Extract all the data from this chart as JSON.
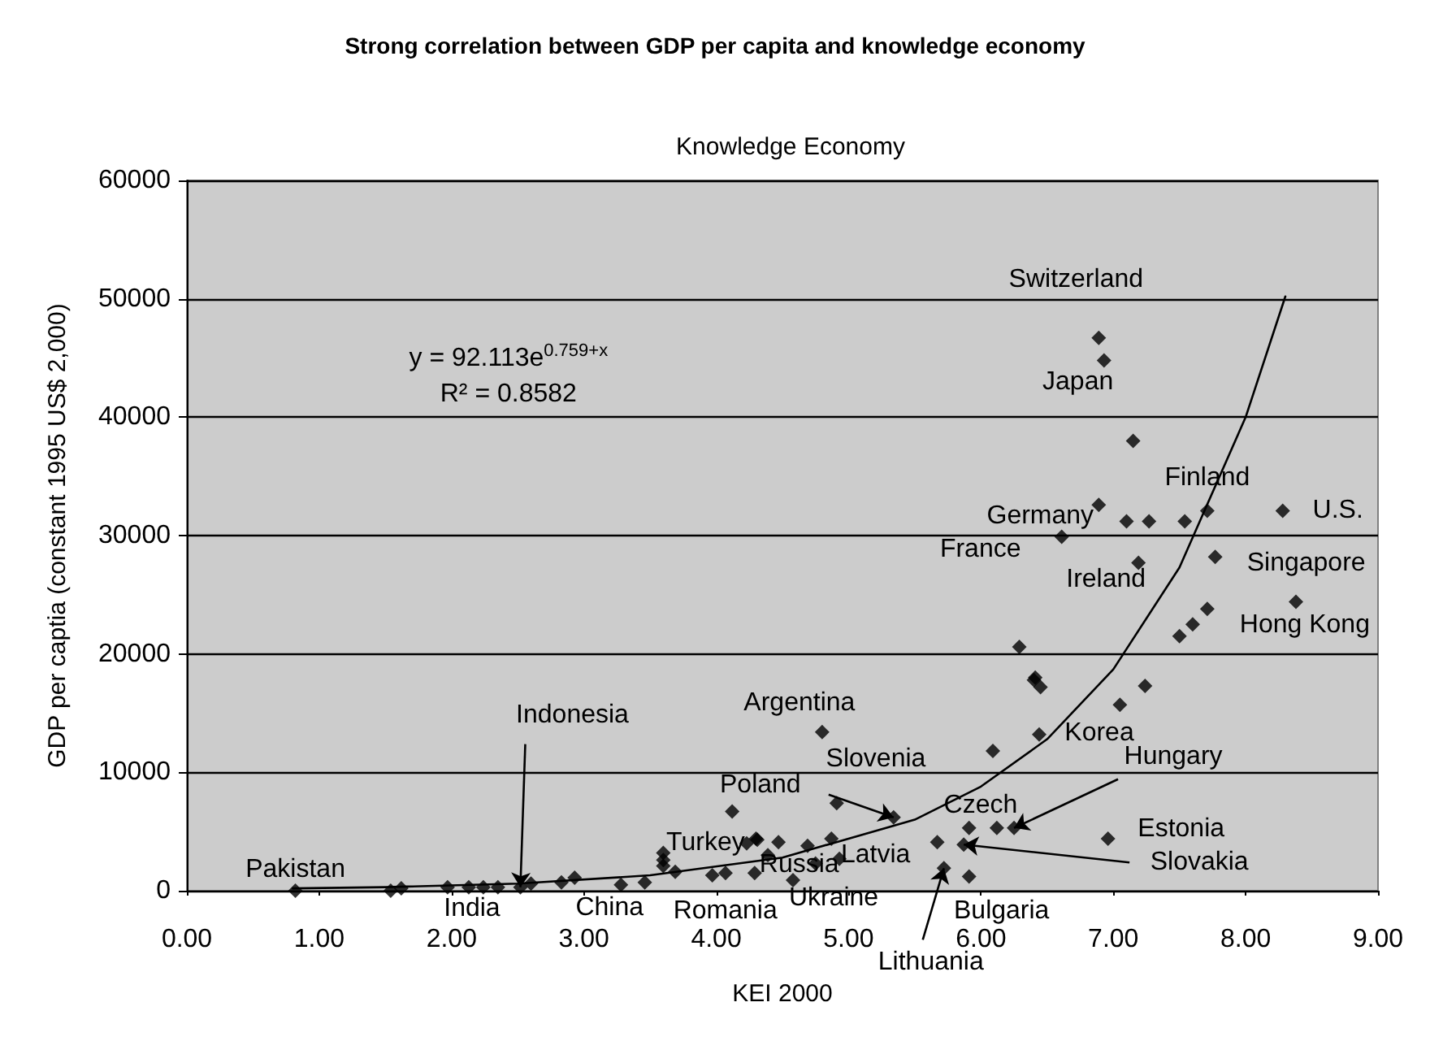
{
  "chart_data": {
    "type": "scatter",
    "title": "Strong correlation between GDP per capita and knowledge economy",
    "subtitle": "Knowledge Economy",
    "xlabel": "KEI 2000",
    "ylabel": "GDP per captia (constant 1995 US$ 2,000)",
    "xlim": [
      0,
      9
    ],
    "xticks": [
      {
        "value": 0,
        "label": "0.00"
      },
      {
        "value": 1,
        "label": "1.00"
      },
      {
        "value": 2,
        "label": "2.00"
      },
      {
        "value": 3,
        "label": "3.00"
      },
      {
        "value": 4,
        "label": "4.00"
      },
      {
        "value": 5,
        "label": "5.00"
      },
      {
        "value": 6,
        "label": "6.00"
      },
      {
        "value": 7,
        "label": "7.00"
      },
      {
        "value": 8,
        "label": "8.00"
      },
      {
        "value": 9,
        "label": "9.00"
      }
    ],
    "ylim": [
      0,
      60000
    ],
    "yticks": [
      0,
      10000,
      20000,
      30000,
      40000,
      50000,
      60000
    ],
    "grid": "y",
    "series": [
      {
        "type": "scatter",
        "marker": "diamond",
        "color": "#000000",
        "x": [
          0.82,
          1.54,
          1.62,
          1.97,
          2.13,
          2.24,
          2.35,
          2.52,
          2.6,
          2.83,
          2.93,
          3.28,
          3.46,
          3.6,
          3.6,
          3.6,
          3.69,
          3.97,
          4.07,
          4.12,
          4.23,
          4.31,
          4.29,
          4.47,
          4.39,
          4.3,
          4.69,
          4.87,
          4.75,
          4.93,
          4.58,
          4.8,
          4.91,
          5.34,
          5.67,
          5.72,
          5.87,
          5.91,
          5.91,
          6.09,
          6.12,
          6.25,
          6.96,
          6.44,
          7.05,
          7.24,
          6.4,
          6.45,
          6.29,
          6.89,
          6.93,
          7.15,
          6.89,
          7.1,
          7.27,
          7.54,
          7.71,
          8.28,
          6.61,
          7.19,
          7.77,
          8.38,
          7.71,
          7.6,
          7.5,
          6.41
        ],
        "values": [
          0,
          0,
          200,
          300,
          300,
          300,
          300,
          300,
          600,
          700,
          1100,
          500,
          700,
          3200,
          2600,
          2100,
          1600,
          1300,
          1500,
          6700,
          4000,
          4300,
          1500,
          4100,
          3000,
          4400,
          3800,
          4400,
          2300,
          2700,
          900,
          13400,
          7400,
          6200,
          4100,
          1900,
          3900,
          5300,
          1200,
          11800,
          5300,
          5300,
          4400,
          13200,
          15700,
          17300,
          17800,
          17200,
          20600,
          46700,
          44800,
          38000,
          32600,
          31200,
          31200,
          31200,
          32100,
          32100,
          29900,
          27700,
          28200,
          24400,
          23800,
          22500,
          21500,
          18000
        ]
      },
      {
        "type": "line",
        "marker": "none",
        "line_style": "solid",
        "color": "#000000",
        "x": [
          0.8,
          1.5,
          2.5,
          3.5,
          4.5,
          5.5,
          6,
          6.5,
          7,
          7.5,
          8,
          8.3
        ],
        "values": [
          200,
          300,
          600,
          1300,
          2800,
          6000,
          8800,
          12800,
          18700,
          27300,
          40000,
          50200
        ]
      }
    ],
    "annotations": [
      "y = 92.113e$^{0.759+x}$",
      "R² = 0.8582",
      {
        "text": "Switzerland",
        "x": 6.89,
        "y": 46700
      },
      {
        "text": "Japan",
        "x": 7.15,
        "y": 38000
      },
      {
        "text": "Finland",
        "x": 7.71,
        "y": 32100
      },
      {
        "text": "U.S.",
        "x": 8.28,
        "y": 32100
      },
      {
        "text": "Germany",
        "x": 6.89,
        "y": 32600
      },
      {
        "text": "France",
        "x": 6.61,
        "y": 29900
      },
      {
        "text": "Ireland",
        "x": 7.19,
        "y": 27700
      },
      {
        "text": "Singapore",
        "x": 7.77,
        "y": 28200
      },
      {
        "text": "Hong Kong",
        "x": 7.71,
        "y": 23800
      },
      {
        "text": "Korea",
        "x": 6.44,
        "y": 13200
      },
      {
        "text": "Argentina",
        "x": 4.8,
        "y": 13400
      },
      {
        "text": "Slovenia",
        "x": 6.09,
        "y": 11800
      },
      {
        "text": "Indonesia",
        "x": 2.52,
        "y": 300
      },
      {
        "text": "Poland",
        "x": 5.34,
        "y": 6200
      },
      {
        "text": "Hungary",
        "x": 6.25,
        "y": 5300
      },
      {
        "text": "Czech",
        "x": 6.12,
        "y": 5300
      },
      {
        "text": "Estonia",
        "x": 6.96,
        "y": 4400
      },
      {
        "text": "Slovakia",
        "x": 5.87,
        "y": 3900
      },
      {
        "text": "Latvia",
        "x": 5.67,
        "y": 4100
      },
      {
        "text": "Turkey",
        "x": 3.6,
        "y": 3200
      },
      {
        "text": "Romania",
        "x": 3.97,
        "y": 1300
      },
      {
        "text": "Russia",
        "x": 4.75,
        "y": 2300
      },
      {
        "text": "Ukraine",
        "x": 4.58,
        "y": 900
      },
      {
        "text": "Bulgaria",
        "x": 5.91,
        "y": 1200
      },
      {
        "text": "Pakistan",
        "x": 0.82,
        "y": 0
      },
      {
        "text": "India",
        "x": 2.13,
        "y": 300
      },
      {
        "text": "China",
        "x": 3.28,
        "y": 500
      },
      {
        "text": "Lithuania",
        "x": 5.72,
        "y": 1900
      }
    ]
  }
}
